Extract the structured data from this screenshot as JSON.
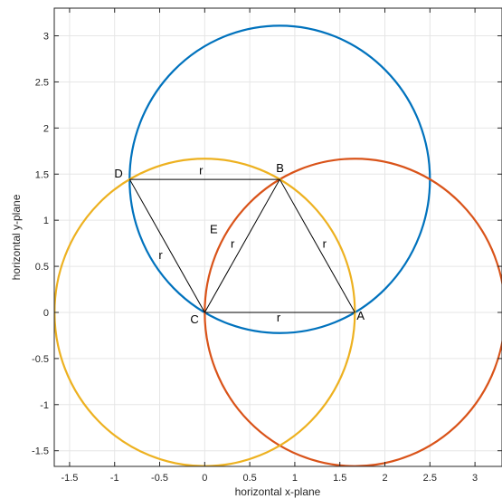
{
  "chart_data": {
    "type": "line",
    "title": "",
    "xlabel": "horizontal x-plane",
    "ylabel": "horizontal y-plane",
    "xlim": [
      -1.67,
      3.3
    ],
    "ylim": [
      -1.67,
      3.3
    ],
    "xticks": [
      -1.5,
      -1,
      -0.5,
      0,
      0.5,
      1,
      1.5,
      2,
      2.5,
      3
    ],
    "yticks": [
      -1.5,
      -1,
      -0.5,
      0,
      0.5,
      1,
      1.5,
      2,
      2.5,
      3
    ],
    "xtick_labels": [
      "-1.5",
      "-1",
      "-0.5",
      "0",
      "0.5",
      "1",
      "1.5",
      "2",
      "2.5",
      "3"
    ],
    "ytick_labels": [
      "-1.5",
      "-1",
      "-0.5",
      "0",
      "0.5",
      "1",
      "1.5",
      "2",
      "2.5",
      "3"
    ],
    "grid": true,
    "circles": [
      {
        "cx": 0.833,
        "cy": 1.443,
        "r": 1.667,
        "color": "#0072BD"
      },
      {
        "cx": 1.667,
        "cy": 0,
        "r": 1.667,
        "color": "#D95319"
      },
      {
        "cx": 0,
        "cy": 0,
        "r": 1.667,
        "color": "#EDB120"
      }
    ],
    "points": [
      {
        "label": "A",
        "x": 1.667,
        "y": 0
      },
      {
        "label": "B",
        "x": 0.833,
        "y": 1.443
      },
      {
        "label": "C",
        "x": 0,
        "y": 0
      },
      {
        "label": "D",
        "x": -0.833,
        "y": 1.443
      }
    ],
    "segments": [
      [
        "C",
        "A"
      ],
      [
        "A",
        "B"
      ],
      [
        "B",
        "C"
      ],
      [
        "C",
        "D"
      ],
      [
        "D",
        "B"
      ]
    ],
    "annotations": [
      {
        "text": "r",
        "x": 0.82,
        "y": -0.1
      },
      {
        "text": "r",
        "x": 1.33,
        "y": 0.7
      },
      {
        "text": "r",
        "x": 0.31,
        "y": 0.7
      },
      {
        "text": "r",
        "x": -0.49,
        "y": 0.58
      },
      {
        "text": "r",
        "x": -0.04,
        "y": 1.5
      },
      {
        "text": "E",
        "x": 0.1,
        "y": 0.86
      }
    ]
  }
}
